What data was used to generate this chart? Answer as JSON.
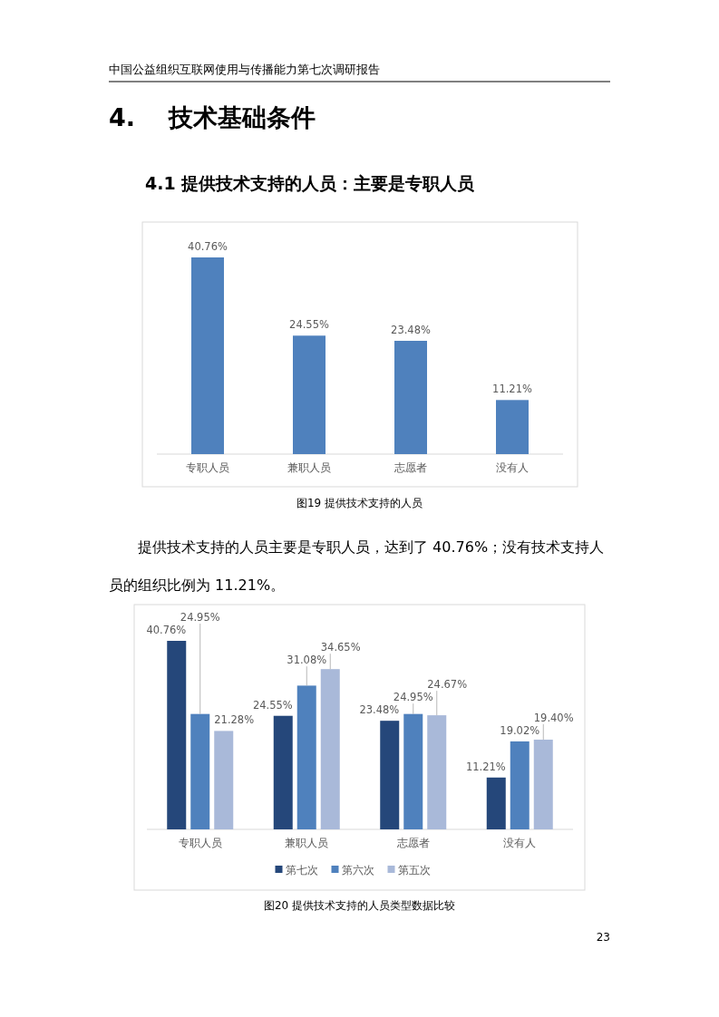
{
  "chart_data": [
    {
      "type": "bar",
      "title": "4.1 提供技术支持的人员：主要是专职人员",
      "categories": [
        "专职人员",
        "兼职人员",
        "志愿者",
        "没有人"
      ],
      "values": [
        40.76,
        24.55,
        23.48,
        11.21
      ],
      "color": "#4f81bd",
      "value_labels": [
        "40.76%",
        "24.55%",
        "23.48%",
        "11.21%"
      ],
      "annotations": [
        "中国公益组织互联网使用与传播能力第七次调研报告",
        "4. 技术基础条件",
        "图19 提供技术支持的人员",
        "23"
      ]
    },
    {
      "type": "bar",
      "categories": [
        "专职人员",
        "兼职人员",
        "志愿者",
        "没有人"
      ],
      "legend": "bottom",
      "series": [
        {
          "name": "第七次",
          "color": "#25477a",
          "values": [
            40.76,
            24.55,
            23.48,
            11.21
          ],
          "value_labels": [
            "40.76%",
            "24.55%",
            "23.48%",
            "11.21%"
          ]
        },
        {
          "name": "第六次",
          "color": "#4f81bd",
          "values": [
            24.95,
            31.08,
            24.95,
            19.02
          ],
          "value_labels": [
            "24.95%",
            "31.08%",
            "24.95%",
            "19.02%"
          ]
        },
        {
          "name": "第五次",
          "color": "#a9b9d9",
          "values": [
            21.28,
            34.65,
            24.67,
            19.4
          ],
          "value_labels": [
            "21.28%",
            "34.65%",
            "24.67%",
            "19.40%"
          ]
        }
      ],
      "annotations": [
        "提供技术支持的人员主要是专职人员，达到了 40.76%；没有技术支持人员的组织比例为 11.21%。",
        "图20 提供技术支持的人员类型数据比较"
      ]
    }
  ]
}
